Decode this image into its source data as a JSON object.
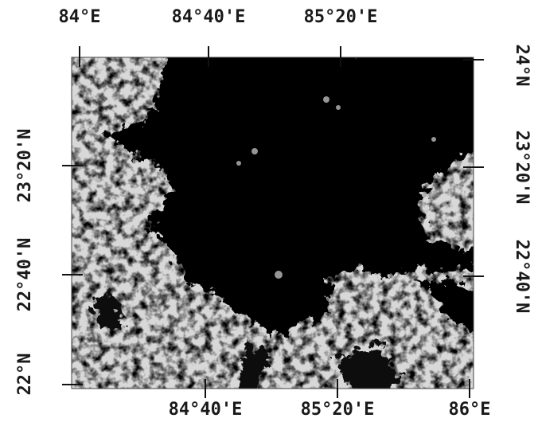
{
  "map": {
    "top_labels": [
      "84°E",
      "84°40'E",
      "85°20'E"
    ],
    "bottom_labels": [
      "84°40'E",
      "85°20'E",
      "86°E"
    ],
    "left_labels": [
      "23°20'N",
      "22°40'N",
      "22°N"
    ],
    "right_labels": [
      "24°N",
      "23°20'N",
      "22°40'N"
    ]
  }
}
